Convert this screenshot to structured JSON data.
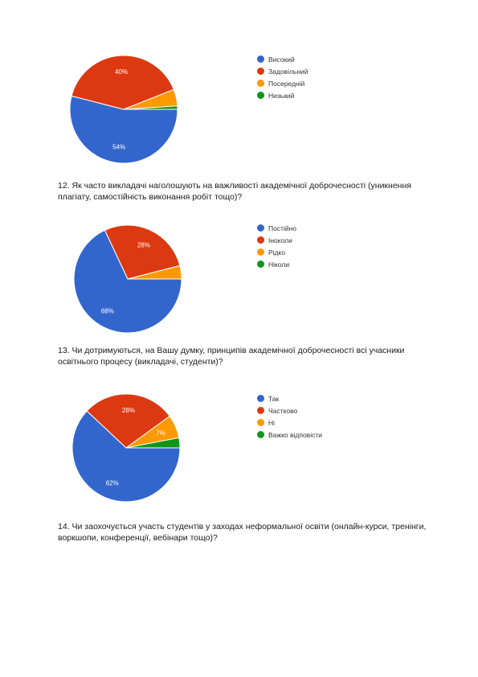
{
  "chart_data": [
    {
      "type": "pie",
      "labels": [
        "Високий",
        "Задовільний",
        "Посередній",
        "Низький"
      ],
      "values": [
        54,
        40,
        5,
        1
      ],
      "value_labels": [
        "54%",
        "40%",
        "",
        ""
      ],
      "colors": [
        "#3366cc",
        "#dc3912",
        "#ff9900",
        "#109618"
      ],
      "legend_position": "right"
    },
    {
      "type": "pie",
      "labels": [
        "Постійно",
        "Іноколи",
        "Рідко",
        "Ніколи"
      ],
      "values": [
        68,
        28,
        4,
        0
      ],
      "value_labels": [
        "68%",
        "28%",
        "",
        ""
      ],
      "colors": [
        "#3366cc",
        "#dc3912",
        "#ff9900",
        "#109618"
      ],
      "legend_position": "right"
    },
    {
      "type": "pie",
      "labels": [
        "Так",
        "Частково",
        "Ні",
        "Важко відповісти"
      ],
      "values": [
        62,
        28,
        7,
        3
      ],
      "value_labels": [
        "62%",
        "28%",
        "7%",
        ""
      ],
      "colors": [
        "#3366cc",
        "#dc3912",
        "#ff9900",
        "#109618"
      ],
      "legend_position": "right"
    }
  ],
  "questions": {
    "q12": "12. Як часто викладачі наголошують на важливості академічної доброчесності (уникнення плагіату, самостійність виконання робіт тощо)?",
    "q13": "13. Чи дотримуються, на Вашу думку, принципів академічної доброчесності всі учасники освітнього процесу (викладачі, студенти)?",
    "q14": "14. Чи заохочується участь студентів у заходах неформальної освіти (онлайн-курси, тренінги, воркшопи, конференції, вебінари тощо)?"
  }
}
